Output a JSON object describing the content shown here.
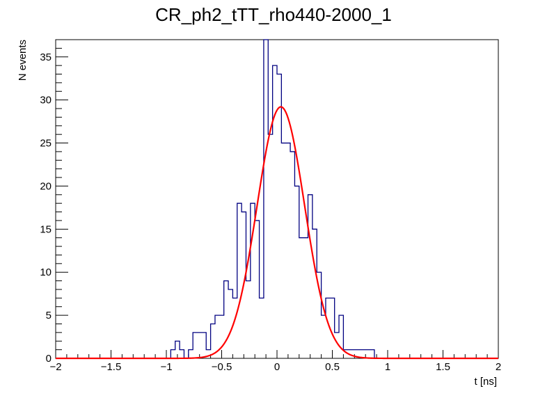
{
  "chart_data": {
    "type": "histogram",
    "title": "CR_ph2_tTT_rho440-2000_1",
    "xlabel": "t [ns]",
    "ylabel": "N events",
    "xlim": [
      -2,
      2
    ],
    "ylim": [
      0,
      37
    ],
    "x_ticks": [
      {
        "value": -2,
        "label": "−2"
      },
      {
        "value": -1.5,
        "label": "−1.5"
      },
      {
        "value": -1,
        "label": "−1"
      },
      {
        "value": -0.5,
        "label": "−0.5"
      },
      {
        "value": 0,
        "label": "0"
      },
      {
        "value": 0.5,
        "label": "0.5"
      },
      {
        "value": 1,
        "label": "1"
      },
      {
        "value": 1.5,
        "label": "1.5"
      },
      {
        "value": 2,
        "label": "2"
      }
    ],
    "y_ticks": [
      {
        "value": 0,
        "label": "0"
      },
      {
        "value": 5,
        "label": "5"
      },
      {
        "value": 10,
        "label": "10"
      },
      {
        "value": 15,
        "label": "15"
      },
      {
        "value": 20,
        "label": "20"
      },
      {
        "value": 25,
        "label": "25"
      },
      {
        "value": 30,
        "label": "30"
      },
      {
        "value": 35,
        "label": "35"
      }
    ],
    "histogram": {
      "bin_edges": [
        -0.96,
        -0.92,
        -0.88,
        -0.84,
        -0.8,
        -0.76,
        -0.72,
        -0.68,
        -0.64,
        -0.6,
        -0.56,
        -0.52,
        -0.48,
        -0.44,
        -0.4,
        -0.36,
        -0.32,
        -0.28,
        -0.24,
        -0.2,
        -0.16,
        -0.12,
        -0.08,
        -0.04,
        0.0,
        0.04,
        0.08,
        0.12,
        0.16,
        0.2,
        0.24,
        0.28,
        0.32,
        0.36,
        0.4,
        0.44,
        0.48,
        0.52,
        0.56,
        0.6,
        0.64,
        0.68,
        0.72,
        0.76,
        0.8,
        0.84,
        0.88,
        0.92
      ],
      "counts": [
        1,
        2,
        1,
        0,
        1,
        3,
        3,
        3,
        1,
        4,
        5,
        5,
        9,
        8,
        7,
        18,
        17,
        9,
        18,
        16,
        7,
        37,
        26,
        34,
        33,
        25,
        25,
        24,
        20,
        14,
        14,
        19,
        15,
        10,
        5,
        7,
        7,
        3,
        5,
        1,
        1,
        1,
        1,
        1,
        1,
        1,
        0
      ],
      "color": "#000080"
    },
    "fit": {
      "function": "gaus",
      "amplitude": 29.2,
      "mean": 0.035,
      "sigma": 0.215,
      "color": "#ff0000"
    }
  }
}
